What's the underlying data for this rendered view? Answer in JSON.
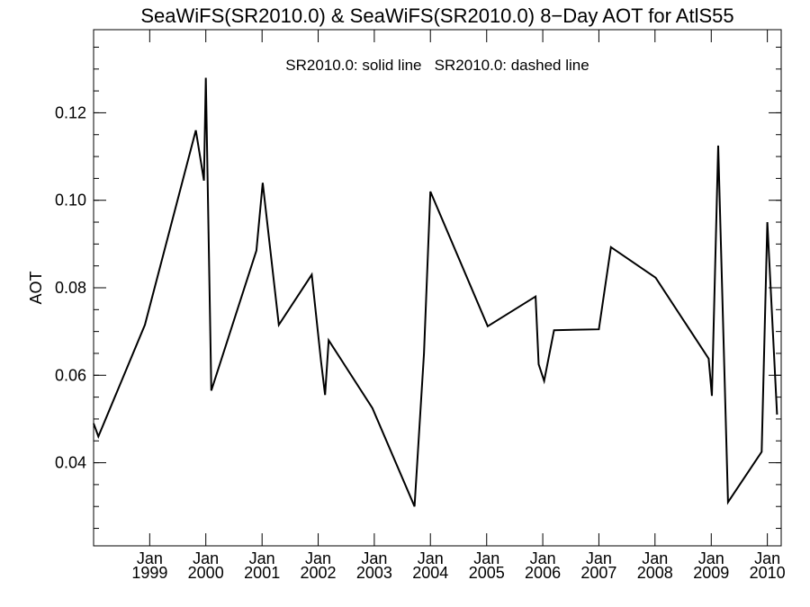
{
  "chart_data": {
    "type": "line",
    "title": "SeaWiFS(SR2010.0) & SeaWiFS(SR2010.0) 8−Day AOT for AtlS55",
    "legend_text": "SR2010.0: solid line   SR2010.0: dashed line",
    "xlabel": "",
    "ylabel": "AOT",
    "xlim": [
      "1998-01-01",
      "2010-04-01"
    ],
    "ylim": [
      0.021,
      0.139
    ],
    "y_ticks": [
      {
        "value": 0.04,
        "label": "0.04"
      },
      {
        "value": 0.06,
        "label": "0.06"
      },
      {
        "value": 0.08,
        "label": "0.08"
      },
      {
        "value": 0.1,
        "label": "0.10"
      },
      {
        "value": 0.12,
        "label": "0.12"
      }
    ],
    "x_ticks": [
      {
        "date": "1999-01-01",
        "month": "Jan",
        "year": "1999"
      },
      {
        "date": "2000-01-01",
        "month": "Jan",
        "year": "2000"
      },
      {
        "date": "2001-01-01",
        "month": "Jan",
        "year": "2001"
      },
      {
        "date": "2002-01-01",
        "month": "Jan",
        "year": "2002"
      },
      {
        "date": "2003-01-01",
        "month": "Jan",
        "year": "2003"
      },
      {
        "date": "2004-01-01",
        "month": "Jan",
        "year": "2004"
      },
      {
        "date": "2005-01-01",
        "month": "Jan",
        "year": "2005"
      },
      {
        "date": "2006-01-01",
        "month": "Jan",
        "year": "2006"
      },
      {
        "date": "2007-01-01",
        "month": "Jan",
        "year": "2007"
      },
      {
        "date": "2008-01-01",
        "month": "Jan",
        "year": "2008"
      },
      {
        "date": "2009-01-01",
        "month": "Jan",
        "year": "2009"
      },
      {
        "date": "2010-01-01",
        "month": "Jan",
        "year": "2010"
      }
    ],
    "series": [
      {
        "style": "solid",
        "points": [
          [
            "1998-01-01",
            0.049
          ],
          [
            "1998-02-01",
            0.046
          ],
          [
            "1998-12-01",
            0.0715
          ],
          [
            "1999-10-28",
            0.116
          ],
          [
            "1999-12-20",
            0.1045
          ],
          [
            "2000-01-01",
            0.128
          ],
          [
            "2000-02-06",
            0.0565
          ],
          [
            "2000-11-25",
            0.0885
          ],
          [
            "2001-01-05",
            0.104
          ],
          [
            "2001-04-20",
            0.0715
          ],
          [
            "2001-11-20",
            0.083
          ],
          [
            "2002-01-20",
            0.063
          ],
          [
            "2002-02-15",
            0.0555
          ],
          [
            "2002-03-10",
            0.068
          ],
          [
            "2002-12-20",
            0.0525
          ],
          [
            "2003-09-20",
            0.03
          ],
          [
            "2003-11-20",
            0.065
          ],
          [
            "2004-01-01",
            0.102
          ],
          [
            "2005-01-08",
            0.0712
          ],
          [
            "2005-11-15",
            0.078
          ],
          [
            "2005-12-05",
            0.0625
          ],
          [
            "2006-01-10",
            0.0587
          ],
          [
            "2006-03-15",
            0.0703
          ],
          [
            "2007-01-01",
            0.0705
          ],
          [
            "2007-03-20",
            0.0893
          ],
          [
            "2008-01-05",
            0.0823
          ],
          [
            "2008-12-15",
            0.0638
          ],
          [
            "2009-01-05",
            0.0553
          ],
          [
            "2009-02-15",
            0.1125
          ],
          [
            "2009-04-20",
            0.031
          ],
          [
            "2009-11-25",
            0.0425
          ],
          [
            "2010-01-01",
            0.095
          ],
          [
            "2010-03-05",
            0.051
          ]
        ]
      }
    ]
  }
}
